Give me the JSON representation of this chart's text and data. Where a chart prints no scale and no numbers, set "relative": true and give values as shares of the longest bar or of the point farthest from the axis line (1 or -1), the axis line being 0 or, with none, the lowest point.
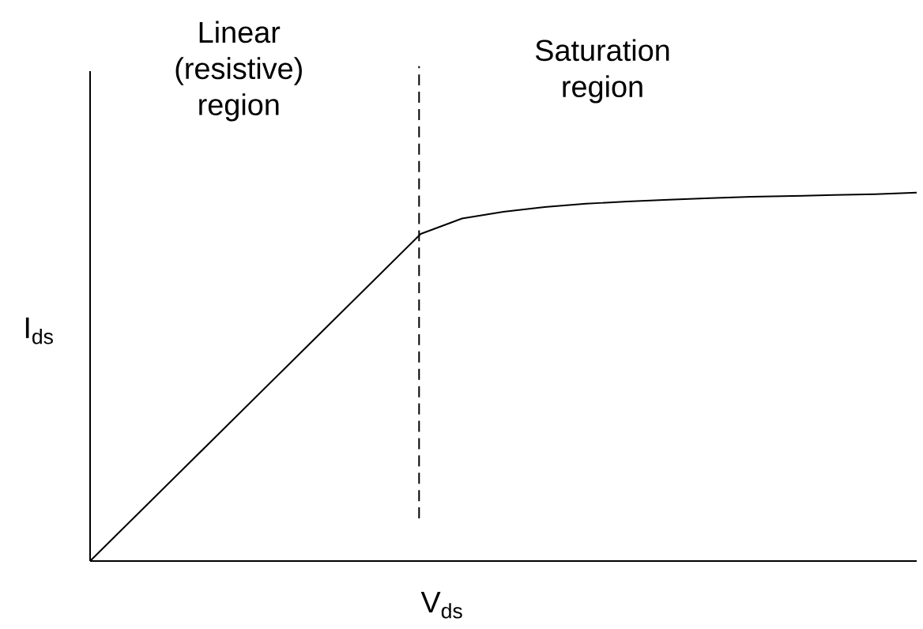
{
  "chart_data": {
    "type": "line",
    "relative": true,
    "xlabel": "V$_{ds}$",
    "ylabel": "I$_{ds}$",
    "categories": [
      null,
      null,
      null,
      null,
      null,
      null,
      null,
      null,
      null,
      null,
      null,
      null,
      null,
      null,
      null,
      null,
      null,
      null,
      null,
      null,
      null
    ],
    "series": [
      {
        "color": "#000000",
        "values": [
          0,
          0.111,
          0.222,
          0.333,
          0.444,
          0.555,
          0.666,
          0.777,
          0.888,
          0.93,
          0.948,
          0.961,
          0.97,
          0.976,
          0.981,
          0.985,
          0.989,
          0.991,
          0.994,
          0.996,
          1
        ]
      }
    ],
    "annotations": [
      "Linear (resistive) region",
      "Saturation region"
    ],
    "marker": "none",
    "line_style": "solid",
    "grid": false
  }
}
